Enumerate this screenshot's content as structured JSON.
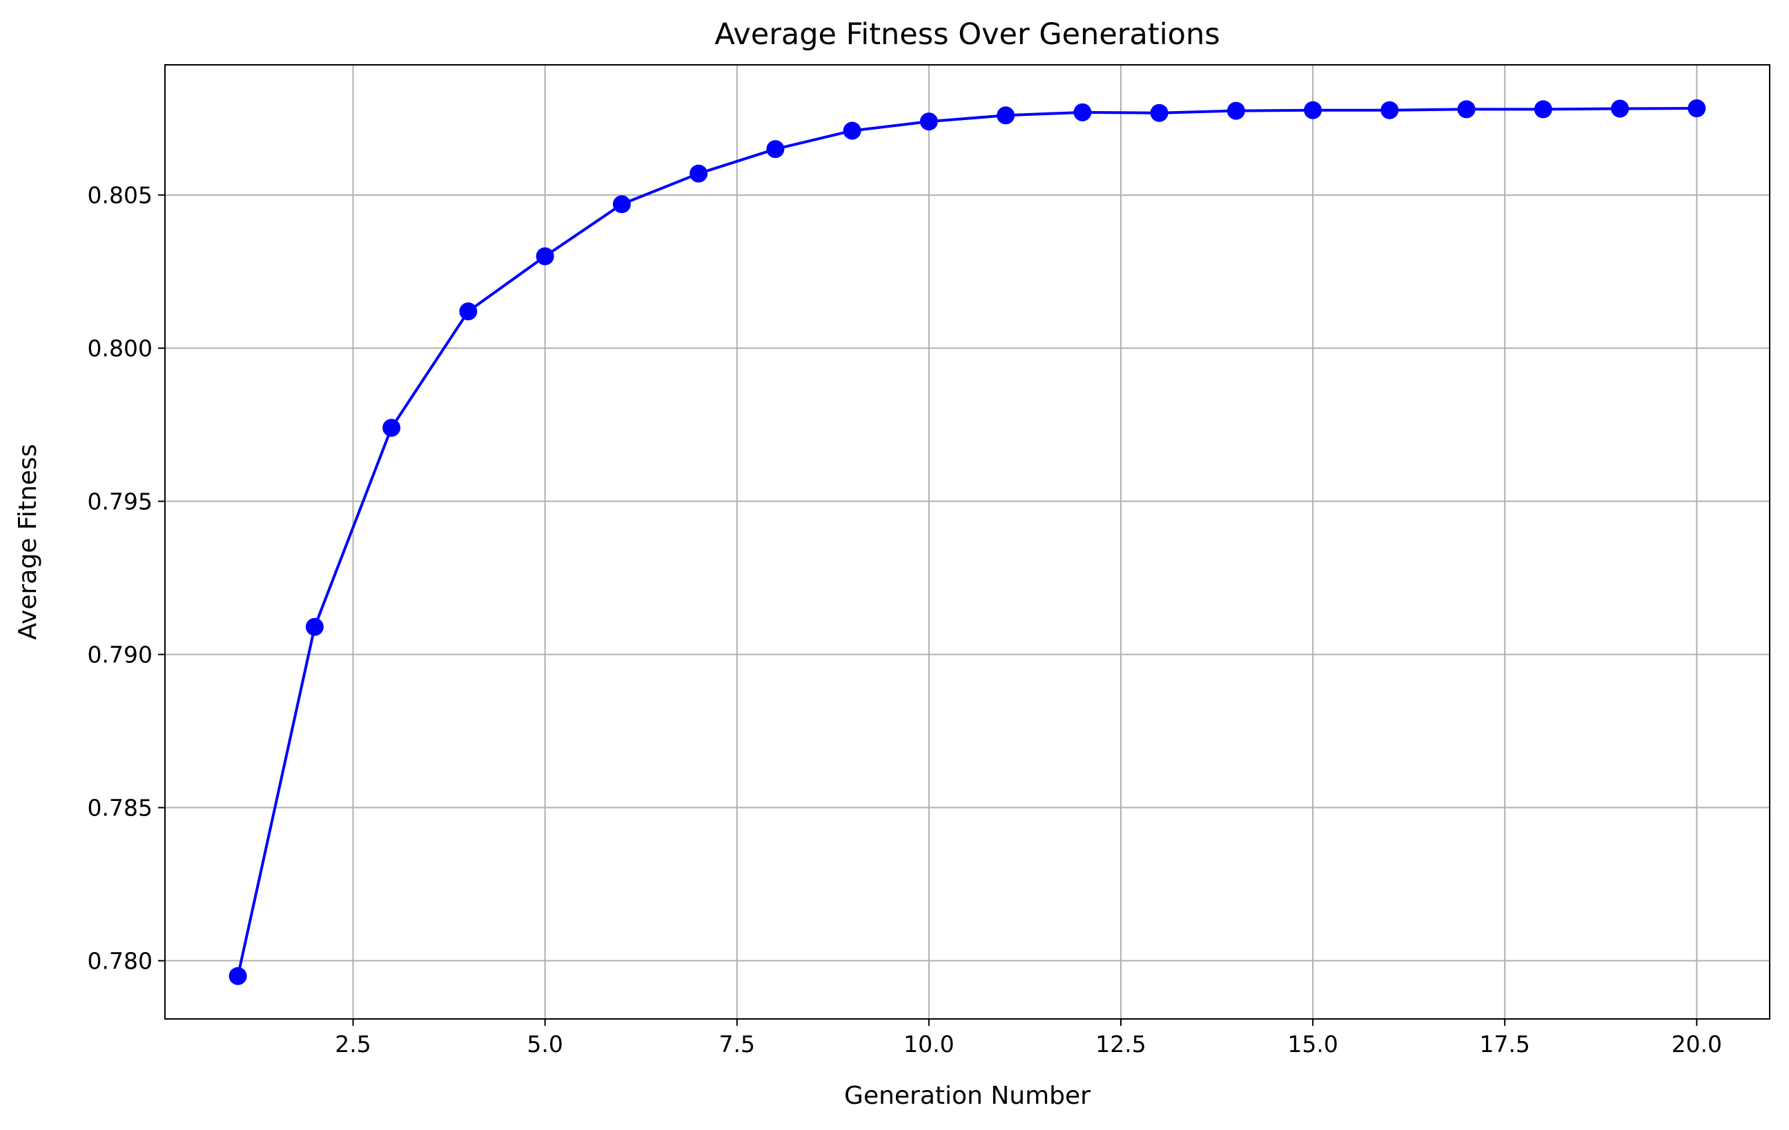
{
  "chart_data": {
    "type": "line",
    "title": "Average Fitness Over Generations",
    "xlabel": "Generation Number",
    "ylabel": "Average Fitness",
    "xlim": [
      0.05,
      20.95
    ],
    "ylim": [
      0.7781,
      0.80925
    ],
    "x_ticks": [
      2.5,
      5.0,
      7.5,
      10.0,
      12.5,
      15.0,
      17.5,
      20.0
    ],
    "x_tick_labels": [
      "2.5",
      "5.0",
      "7.5",
      "10.0",
      "12.5",
      "15.0",
      "17.5",
      "20.0"
    ],
    "y_ticks": [
      0.78,
      0.785,
      0.79,
      0.795,
      0.8,
      0.805
    ],
    "y_tick_labels": [
      "0.780",
      "0.785",
      "0.790",
      "0.795",
      "0.800",
      "0.805"
    ],
    "grid": true,
    "series": [
      {
        "color": "#0000ff",
        "marker": "circle",
        "x": [
          1,
          2,
          3,
          4,
          5,
          6,
          7,
          8,
          9,
          10,
          11,
          12,
          13,
          14,
          15,
          16,
          17,
          18,
          19,
          20
        ],
        "values": [
          0.7795,
          0.7909,
          0.7974,
          0.8012,
          0.803,
          0.8047,
          0.8057,
          0.8065,
          0.8071,
          0.8074,
          0.8076,
          0.8077,
          0.80768,
          0.80775,
          0.80777,
          0.80777,
          0.8078,
          0.8078,
          0.80782,
          0.80783
        ]
      }
    ],
    "colors": {
      "grid": "#b0b0b0",
      "axes": "#000000",
      "line": "#0000ff"
    }
  }
}
